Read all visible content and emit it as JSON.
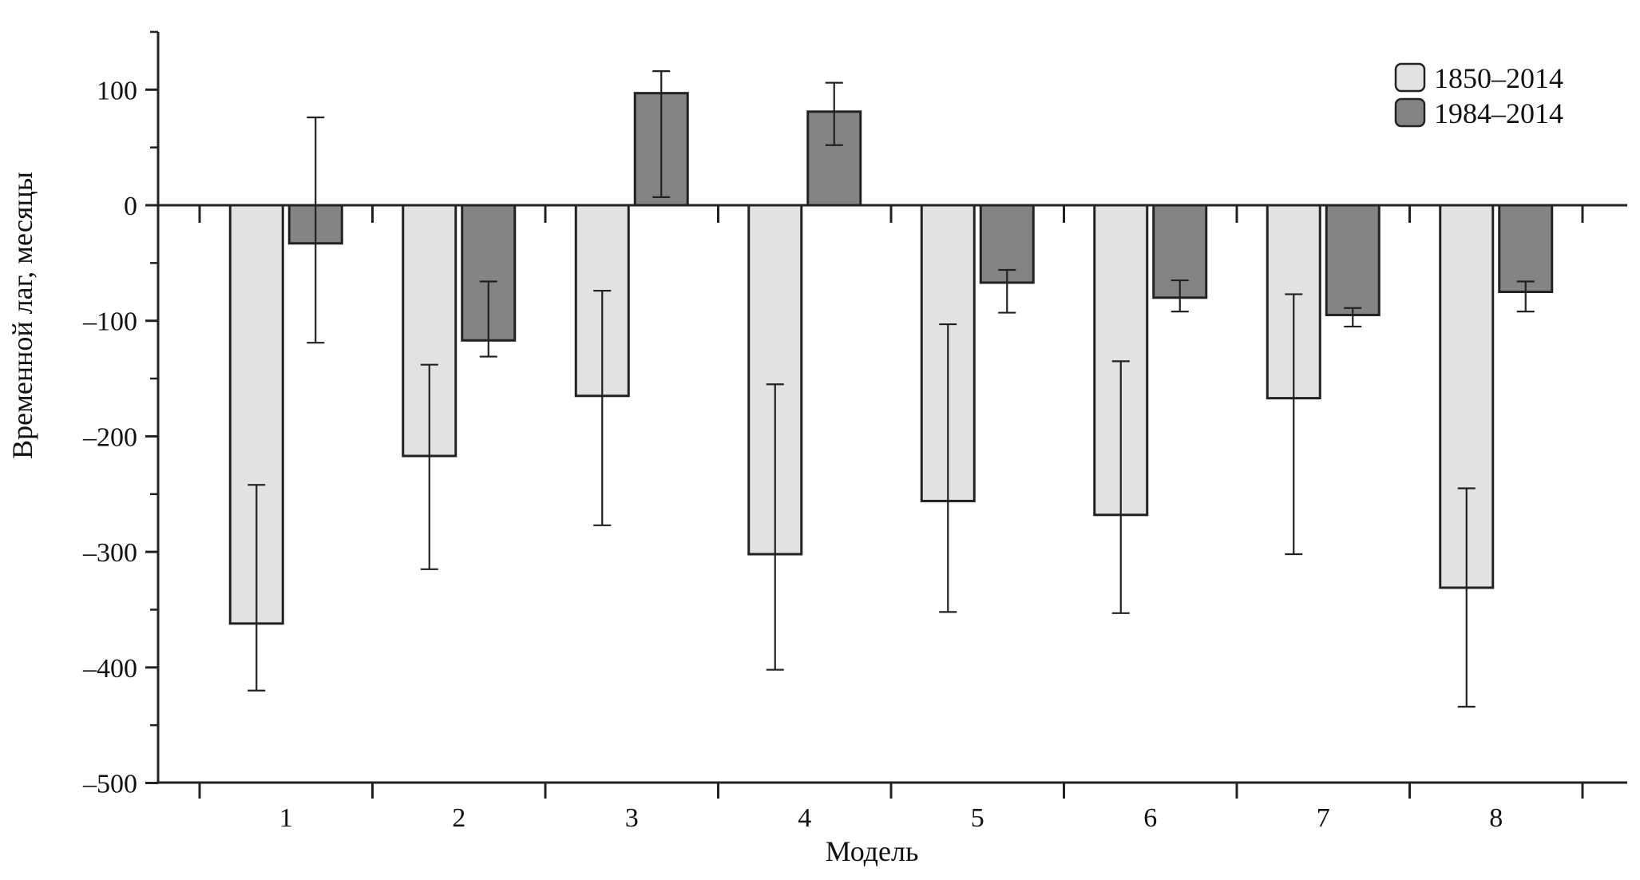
{
  "chart_data": {
    "type": "bar",
    "title": "",
    "xlabel": "Модель",
    "ylabel": "Временной лаг, месяцы",
    "categories": [
      "1",
      "2",
      "3",
      "4",
      "5",
      "6",
      "7",
      "8"
    ],
    "ylim": [
      -500,
      150
    ],
    "yticks": [
      100,
      0,
      -100,
      -200,
      -300,
      -400,
      -500
    ],
    "ytick_labels": [
      "100",
      "0",
      "–100",
      "–200",
      "–300",
      "–400",
      "–500"
    ],
    "grid": false,
    "legend_position": "top-right",
    "series": [
      {
        "name": "1850–2014",
        "color": "#e2e2e2",
        "values": [
          -362,
          -217,
          -165,
          -302,
          -256,
          -268,
          -167,
          -331
        ],
        "error_low": [
          -420,
          -315,
          -277,
          -402,
          -352,
          -353,
          -302,
          -434
        ],
        "error_high": [
          -242,
          -138,
          -74,
          -155,
          -103,
          -135,
          -77,
          -245
        ]
      },
      {
        "name": "1984–2014",
        "color": "#848484",
        "values": [
          -33,
          -117,
          97,
          81,
          -67,
          -80,
          -95,
          -75
        ],
        "error_low": [
          -119,
          -131,
          7,
          52,
          -93,
          -92,
          -105,
          -92
        ],
        "error_high": [
          76,
          -66,
          116,
          106,
          -56,
          -65,
          -89,
          -66
        ]
      }
    ]
  }
}
